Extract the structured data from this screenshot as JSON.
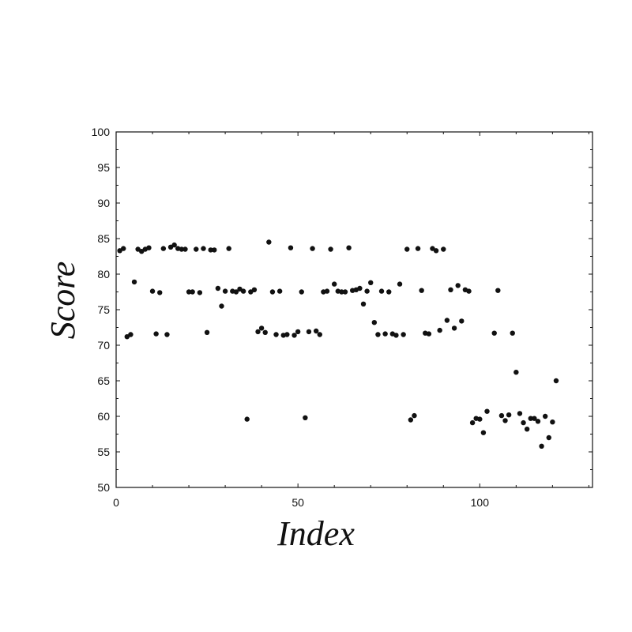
{
  "chart_data": {
    "type": "scatter",
    "title": "",
    "xlabel": "Index",
    "ylabel": "Score",
    "xlim": [
      0,
      131
    ],
    "ylim": [
      50,
      100
    ],
    "x_ticks": [
      0,
      50,
      100
    ],
    "y_ticks": [
      50,
      55,
      60,
      65,
      70,
      75,
      80,
      85,
      90,
      95,
      100
    ],
    "x_tick_labels": [
      "0",
      "50",
      "100"
    ],
    "y_tick_labels": [
      "50",
      "55",
      "60",
      "65",
      "70",
      "75",
      "80",
      "85",
      "90",
      "95",
      "100"
    ],
    "grid": false,
    "legend": "none",
    "marker_color": "#111111",
    "series": [
      {
        "points": [
          [
            1,
            83.3
          ],
          [
            2,
            83.6
          ],
          [
            3,
            71.2
          ],
          [
            4,
            71.5
          ],
          [
            5,
            78.9
          ],
          [
            6,
            83.5
          ],
          [
            7,
            83.2
          ],
          [
            8,
            83.5
          ],
          [
            9,
            83.7
          ],
          [
            10,
            77.6
          ],
          [
            11,
            71.6
          ],
          [
            12,
            77.4
          ],
          [
            13,
            83.6
          ],
          [
            14,
            71.5
          ],
          [
            15,
            83.8
          ],
          [
            16,
            84.1
          ],
          [
            17,
            83.6
          ],
          [
            18,
            83.5
          ],
          [
            19,
            83.5
          ],
          [
            20,
            77.5
          ],
          [
            21,
            77.5
          ],
          [
            22,
            83.5
          ],
          [
            23,
            77.4
          ],
          [
            24,
            83.6
          ],
          [
            25,
            71.8
          ],
          [
            26,
            83.4
          ],
          [
            27,
            83.4
          ],
          [
            28,
            78.0
          ],
          [
            29,
            75.5
          ],
          [
            30,
            77.6
          ],
          [
            31,
            83.6
          ],
          [
            32,
            77.6
          ],
          [
            33,
            77.5
          ],
          [
            34,
            77.9
          ],
          [
            35,
            77.6
          ],
          [
            36,
            59.6
          ],
          [
            37,
            77.5
          ],
          [
            38,
            77.8
          ],
          [
            39,
            71.9
          ],
          [
            40,
            72.4
          ],
          [
            41,
            71.8
          ],
          [
            42,
            84.5
          ],
          [
            43,
            77.5
          ],
          [
            44,
            71.5
          ],
          [
            45,
            77.6
          ],
          [
            46,
            71.4
          ],
          [
            47,
            71.5
          ],
          [
            48,
            83.7
          ],
          [
            49,
            71.4
          ],
          [
            50,
            71.9
          ],
          [
            51,
            77.5
          ],
          [
            52,
            59.8
          ],
          [
            53,
            71.9
          ],
          [
            54,
            83.6
          ],
          [
            55,
            72.0
          ],
          [
            56,
            71.5
          ],
          [
            57,
            77.5
          ],
          [
            58,
            77.6
          ],
          [
            59,
            83.5
          ],
          [
            60,
            78.6
          ],
          [
            61,
            77.6
          ],
          [
            62,
            77.5
          ],
          [
            63,
            77.5
          ],
          [
            64,
            83.7
          ],
          [
            65,
            77.7
          ],
          [
            66,
            77.8
          ],
          [
            67,
            78.0
          ],
          [
            68,
            75.8
          ],
          [
            69,
            77.6
          ],
          [
            70,
            78.8
          ],
          [
            71,
            73.2
          ],
          [
            72,
            71.5
          ],
          [
            73,
            77.6
          ],
          [
            74,
            71.6
          ],
          [
            75,
            77.5
          ],
          [
            76,
            71.6
          ],
          [
            77,
            71.4
          ],
          [
            78,
            78.6
          ],
          [
            79,
            71.5
          ],
          [
            80,
            83.5
          ],
          [
            81,
            59.5
          ],
          [
            82,
            60.1
          ],
          [
            83,
            83.6
          ],
          [
            84,
            77.7
          ],
          [
            85,
            71.7
          ],
          [
            86,
            71.6
          ],
          [
            87,
            83.6
          ],
          [
            88,
            83.3
          ],
          [
            89,
            72.1
          ],
          [
            90,
            83.5
          ],
          [
            91,
            73.5
          ],
          [
            92,
            77.8
          ],
          [
            93,
            72.4
          ],
          [
            94,
            78.4
          ],
          [
            95,
            73.4
          ],
          [
            96,
            77.8
          ],
          [
            97,
            77.6
          ],
          [
            98,
            59.1
          ],
          [
            99,
            59.7
          ],
          [
            100,
            59.6
          ],
          [
            101,
            57.7
          ],
          [
            102,
            60.7
          ],
          [
            104,
            71.7
          ],
          [
            105,
            77.7
          ],
          [
            106,
            60.1
          ],
          [
            107,
            59.4
          ],
          [
            108,
            60.2
          ],
          [
            109,
            71.7
          ],
          [
            110,
            66.2
          ],
          [
            111,
            60.4
          ],
          [
            112,
            59.1
          ],
          [
            113,
            58.2
          ],
          [
            114,
            59.7
          ],
          [
            115,
            59.7
          ],
          [
            116,
            59.3
          ],
          [
            117,
            55.8
          ],
          [
            118,
            60.0
          ],
          [
            119,
            57.0
          ],
          [
            120,
            59.2
          ],
          [
            121,
            65.0
          ]
        ]
      }
    ]
  }
}
